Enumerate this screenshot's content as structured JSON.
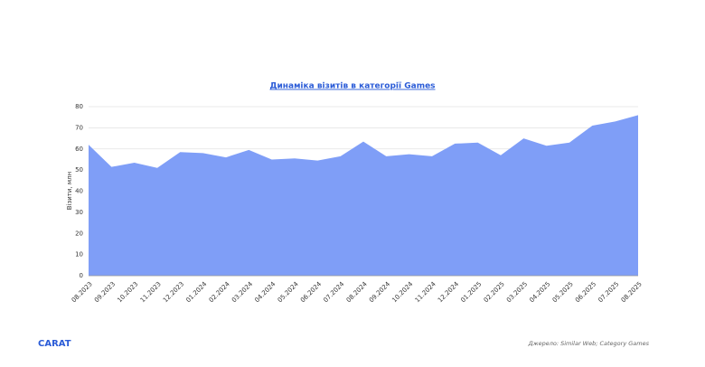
{
  "chart_data": {
    "type": "area",
    "title": "Динаміка візитів в категорії Games",
    "y_label": "Візити, млн",
    "categories": [
      "08.2023",
      "09.2023",
      "10.2023",
      "11.2023",
      "12.2023",
      "01.2024",
      "02.2024",
      "03.2024",
      "04.2024",
      "05.2024",
      "06.2024",
      "07.2024",
      "08.2024",
      "09.2024",
      "10.2024",
      "11.2024",
      "12.2024",
      "01.2025",
      "02.2025",
      "03.2025",
      "04.2025",
      "05.2025",
      "06.2025",
      "07.2025",
      "08.2025"
    ],
    "series": [
      {
        "name": "Візити",
        "color": "#7f9ef7",
        "values": [
          62,
          51.5,
          53.5,
          51,
          58.5,
          58,
          56,
          59.5,
          55,
          55.5,
          54.5,
          56.5,
          63.5,
          56.5,
          57.5,
          56.5,
          62.5,
          63,
          57,
          65,
          61.5,
          63,
          71,
          73,
          76
        ]
      }
    ],
    "ylim": [
      0,
      80
    ],
    "yticks": [
      0,
      10,
      20,
      30,
      40,
      50,
      60,
      70,
      80
    ],
    "grid": true,
    "brand": "CARAT",
    "source": "Джерело: Similar Web; Category Games"
  }
}
